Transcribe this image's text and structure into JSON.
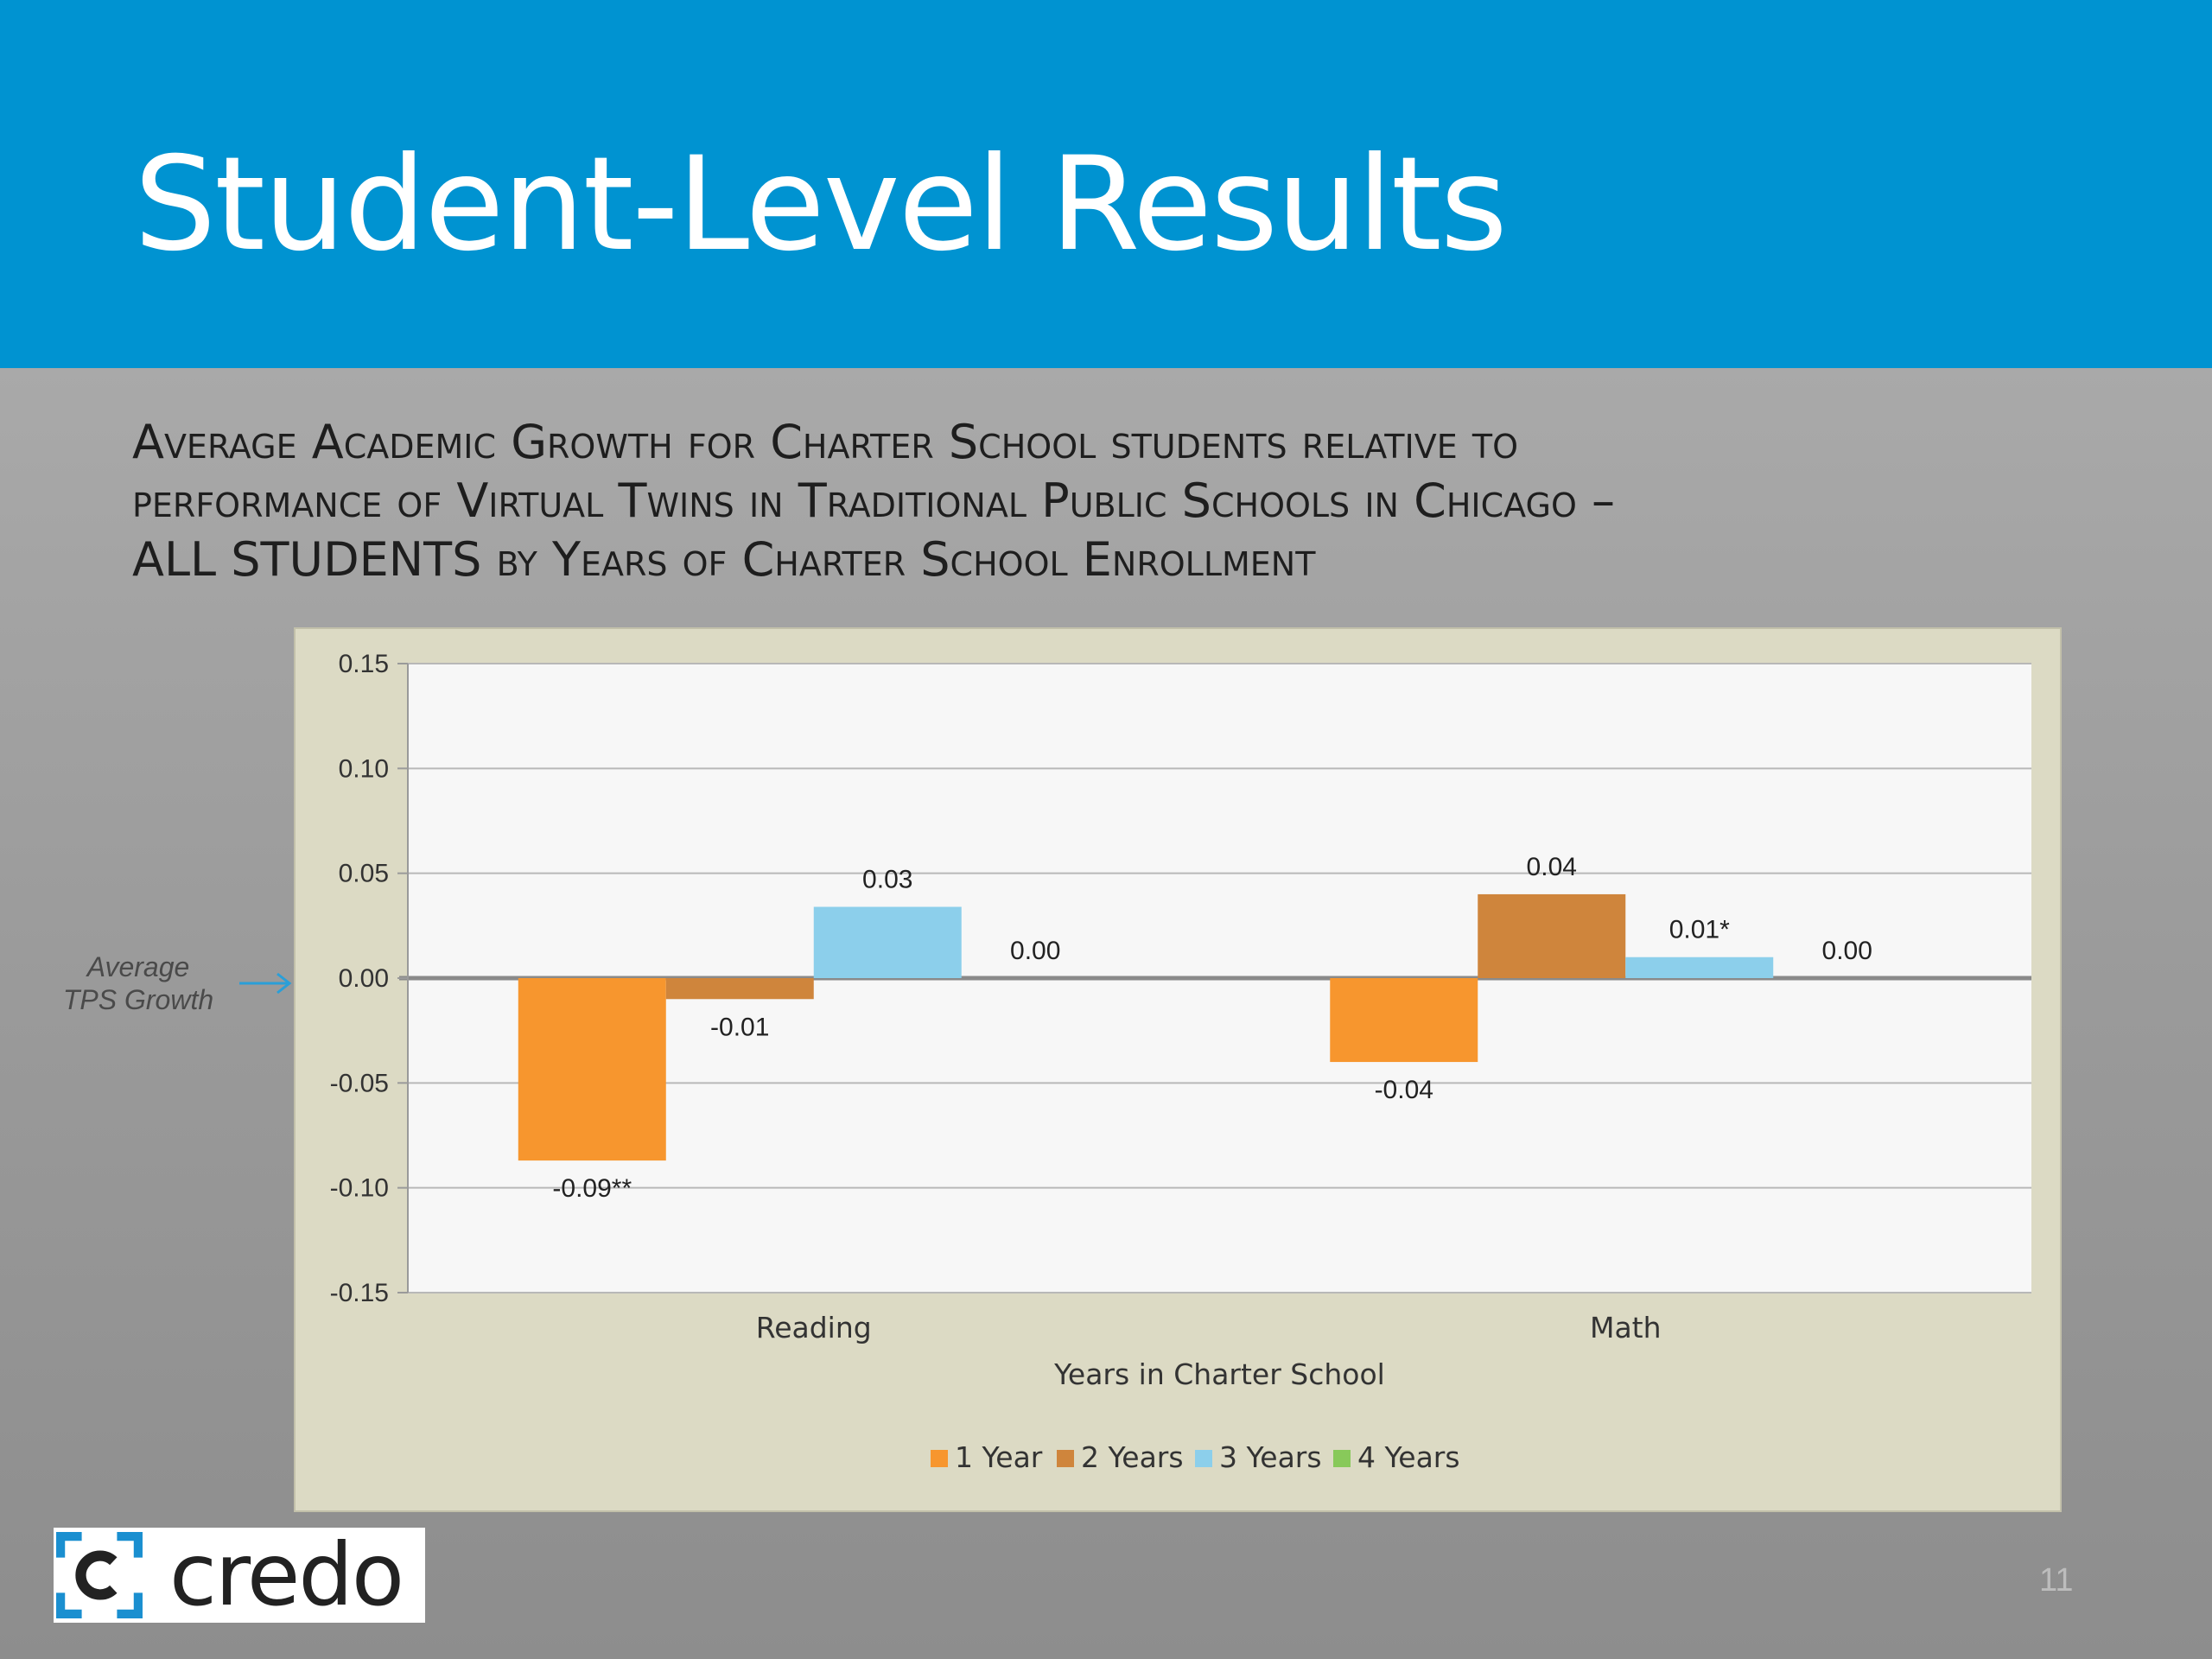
{
  "slide": {
    "title": "Student-Level Results",
    "chart_heading_lines": [
      "Average Academic Growth for Charter School students relative to",
      "performance of Virtual Twins in Traditional Public Schools in Chicago –",
      "ALL STUDENTS by Years of Charter School Enrollment"
    ],
    "reference_note_lines": [
      "Average",
      "TPS Growth"
    ],
    "logo_text": "credo",
    "page_number": "11"
  },
  "colors": {
    "header": "#0093d1",
    "series": [
      "#f7962e",
      "#cf853c",
      "#8ccfeb",
      "#88c95a"
    ],
    "plot_background": "#f7f7f7",
    "panel_background": "#dcdac4",
    "arrow": "#2a9fd8"
  },
  "chart_data": {
    "type": "bar",
    "categories": [
      "Reading",
      "Math"
    ],
    "xlabel": "Years in Charter School",
    "ylabel": "",
    "ylim": [
      -0.15,
      0.15
    ],
    "yticks": [
      0.15,
      0.1,
      0.05,
      0.0,
      -0.05,
      -0.1,
      -0.15
    ],
    "ytick_labels": [
      "0.15",
      "0.10",
      "0.05",
      "0.00",
      "-0.05",
      "-0.10",
      "-0.15"
    ],
    "grid": true,
    "legend": "bottom",
    "series": [
      {
        "name": "1 Year",
        "values": [
          -0.087,
          -0.04
        ],
        "labels": [
          "-0.09**",
          "-0.04"
        ]
      },
      {
        "name": "2 Years",
        "values": [
          -0.01,
          0.04
        ],
        "labels": [
          "-0.01",
          "0.04"
        ]
      },
      {
        "name": "3 Years",
        "values": [
          0.034,
          0.01
        ],
        "labels": [
          "0.03",
          "0.01*"
        ]
      },
      {
        "name": "4 Years",
        "values": [
          0.0,
          0.0
        ],
        "labels": [
          "0.00",
          "0.00"
        ]
      }
    ]
  }
}
